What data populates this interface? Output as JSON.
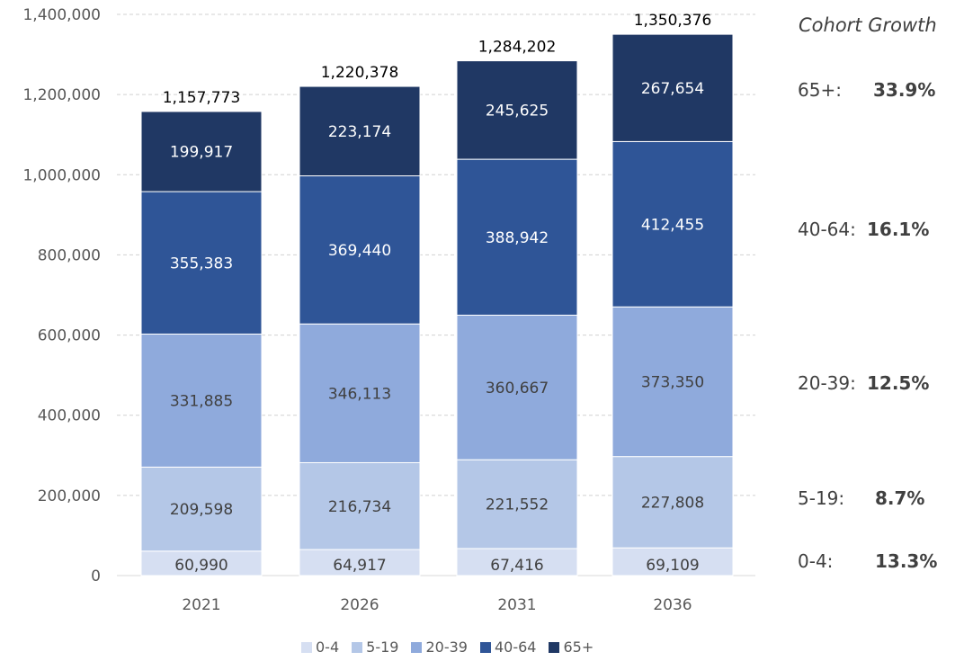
{
  "chart_data": {
    "type": "bar",
    "stacked": true,
    "categories": [
      "2021",
      "2026",
      "2031",
      "2036"
    ],
    "series": [
      {
        "name": "0-4",
        "color": "#d6dff2",
        "label_color": "#404040",
        "values": [
          60990,
          64917,
          67416,
          69109
        ]
      },
      {
        "name": "5-19",
        "color": "#b4c7e7",
        "label_color": "#404040",
        "values": [
          209598,
          216734,
          221552,
          227808
        ]
      },
      {
        "name": "20-39",
        "color": "#8faadc",
        "label_color": "#404040",
        "values": [
          331885,
          346113,
          360667,
          373350
        ]
      },
      {
        "name": "40-64",
        "color": "#2f5597",
        "label_color": "#ffffff",
        "values": [
          355383,
          369440,
          388942,
          412455
        ]
      },
      {
        "name": "65+",
        "color": "#203864",
        "label_color": "#ffffff",
        "values": [
          199917,
          223174,
          245625,
          267654
        ]
      }
    ],
    "segment_labels": [
      [
        "60,990",
        "64,917",
        "67,416",
        "69,109"
      ],
      [
        "209,598",
        "216,734",
        "221,552",
        "227,808"
      ],
      [
        "331,885",
        "346,113",
        "360,667",
        "373,350"
      ],
      [
        "355,383",
        "369,440",
        "388,942",
        "412,455"
      ],
      [
        "199,917",
        "223,174",
        "245,625",
        "267,654"
      ]
    ],
    "totals": [
      "1,157,773",
      "1,220,378",
      "1,284,202",
      "1,350,376"
    ],
    "total_values": [
      1157773,
      1220378,
      1284202,
      1350376
    ],
    "ylim": [
      0,
      1400000
    ],
    "yticks": [
      0,
      200000,
      400000,
      600000,
      800000,
      1000000,
      1200000,
      1400000
    ],
    "ytick_labels": [
      "0",
      "200,000",
      "400,000",
      "600,000",
      "800,000",
      "1,000,000",
      "1,200,000",
      "1,400,000"
    ],
    "grid": true,
    "legend_position": "bottom"
  },
  "growth_panel": {
    "title": "Cohort Growth",
    "rows": [
      {
        "label": "65+:",
        "value": "33.9%"
      },
      {
        "label": "40-64:",
        "value": "16.1%"
      },
      {
        "label": "20-39:",
        "value": "12.5%"
      },
      {
        "label": "5-19:",
        "value": "8.7%"
      },
      {
        "label": "0-4:",
        "value": "13.3%"
      }
    ]
  }
}
